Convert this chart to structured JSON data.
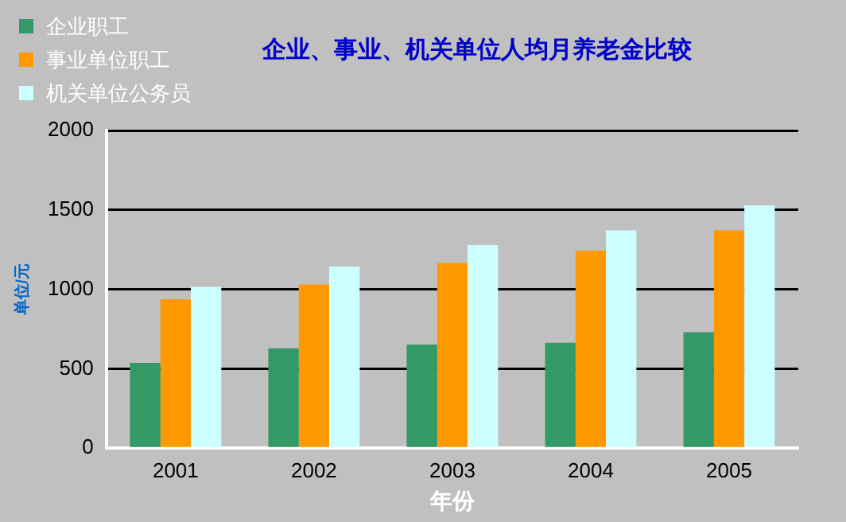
{
  "chart_data": {
    "type": "bar",
    "title": "企业、事业、机关单位人均月养老金比较",
    "xlabel": "年份",
    "ylabel": "单位/元",
    "categories": [
      "2001",
      "2002",
      "2003",
      "2004",
      "2005"
    ],
    "series": [
      {
        "name": "企业职工",
        "color": "#339966",
        "values": [
          537,
          629,
          652,
          664,
          730
        ]
      },
      {
        "name": "事业单位职工",
        "color": "#ff9900",
        "values": [
          938,
          1031,
          1166,
          1243,
          1371
        ]
      },
      {
        "name": "机关单位公务员",
        "color": "#ccffff",
        "values": [
          1015,
          1143,
          1278,
          1371,
          1529
        ]
      }
    ],
    "ylim": [
      0,
      2000
    ],
    "yticks": [
      0,
      500,
      1000,
      1500,
      2000
    ],
    "grid": "y",
    "legend": "top left"
  }
}
